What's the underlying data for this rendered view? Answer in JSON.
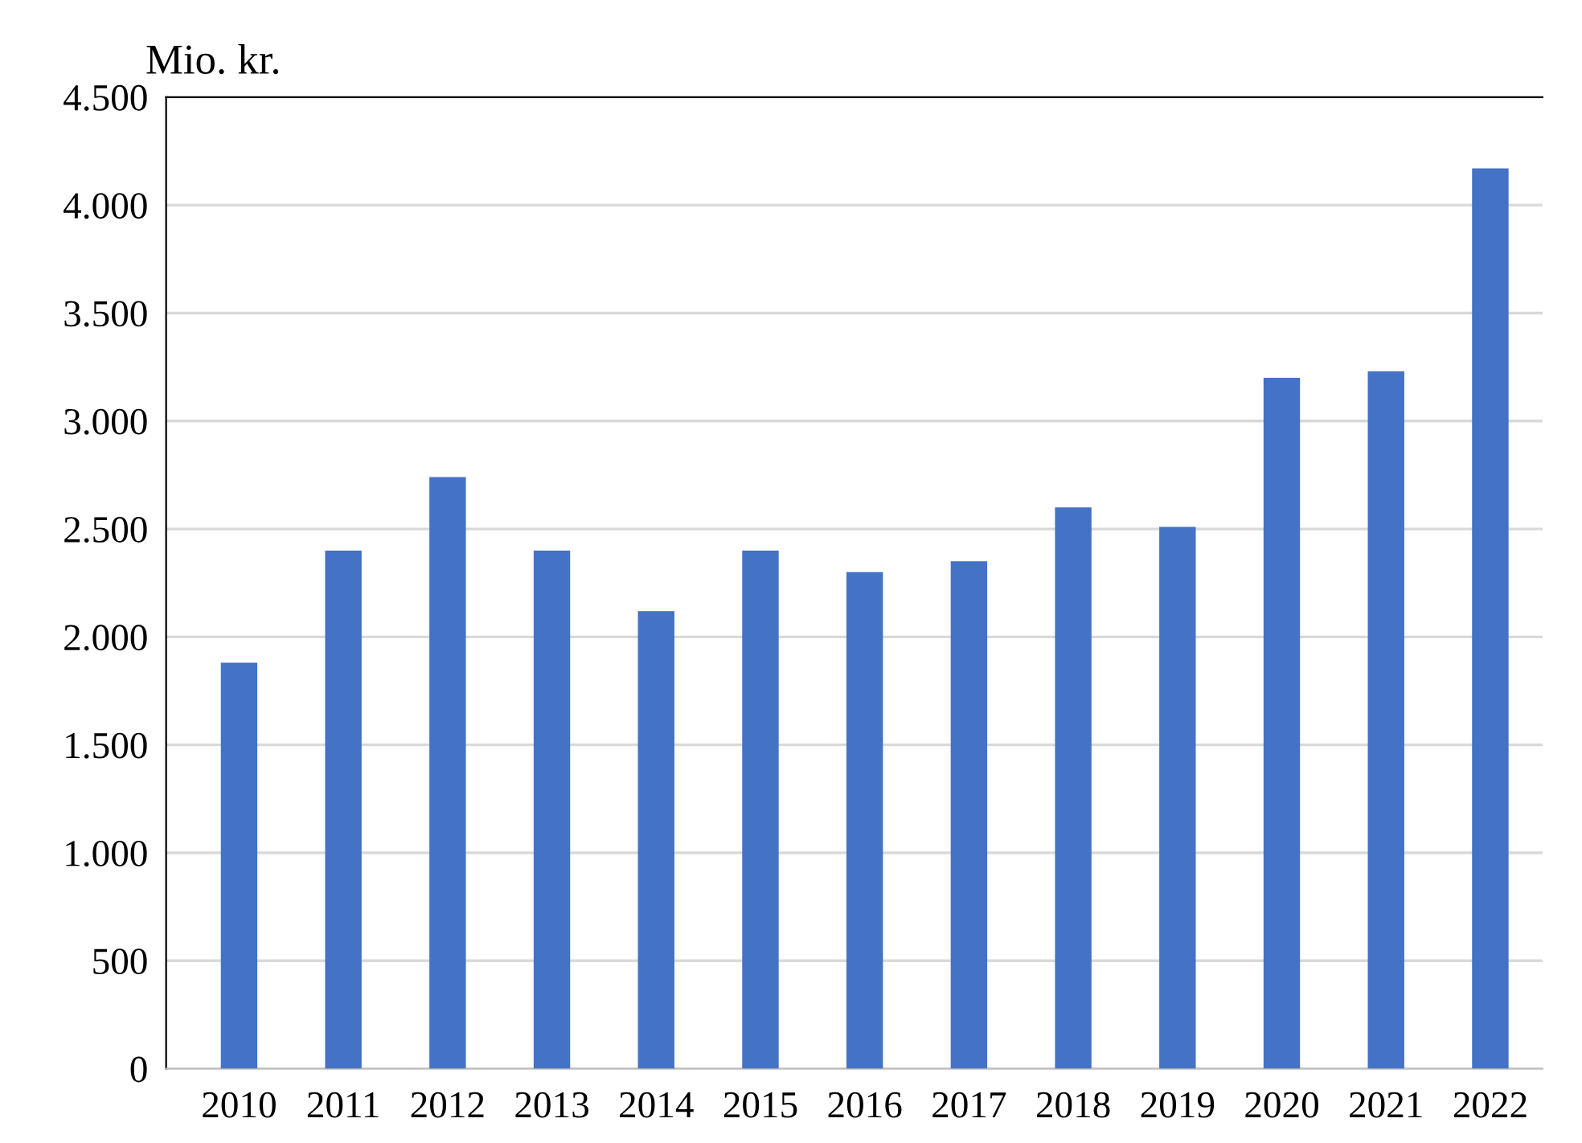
{
  "chart_data": {
    "type": "bar",
    "ylabel": "Mio. kr.",
    "categories": [
      "2010",
      "2011",
      "2012",
      "2013",
      "2014",
      "2015",
      "2016",
      "2017",
      "2018",
      "2019",
      "2020",
      "2021",
      "2022"
    ],
    "values": [
      1880,
      2400,
      2740,
      2400,
      2120,
      2400,
      2300,
      2350,
      2600,
      2510,
      3200,
      3230,
      4170
    ],
    "color": "#4472c4",
    "ylim": [
      0,
      4500
    ],
    "yticks": [
      0,
      500,
      {
        "value": 1000,
        "label": "1.000"
      },
      {
        "value": 1500,
        "label": "1.500"
      },
      {
        "value": 2000,
        "label": "2.000"
      },
      {
        "value": 2500,
        "label": "2.500"
      },
      {
        "value": 3000,
        "label": "3.000"
      },
      {
        "value": 3500,
        "label": "3.500"
      },
      {
        "value": 4000,
        "label": "4.000"
      },
      {
        "value": 4500,
        "label": "4.500"
      }
    ],
    "grid": "y",
    "legend": false
  }
}
